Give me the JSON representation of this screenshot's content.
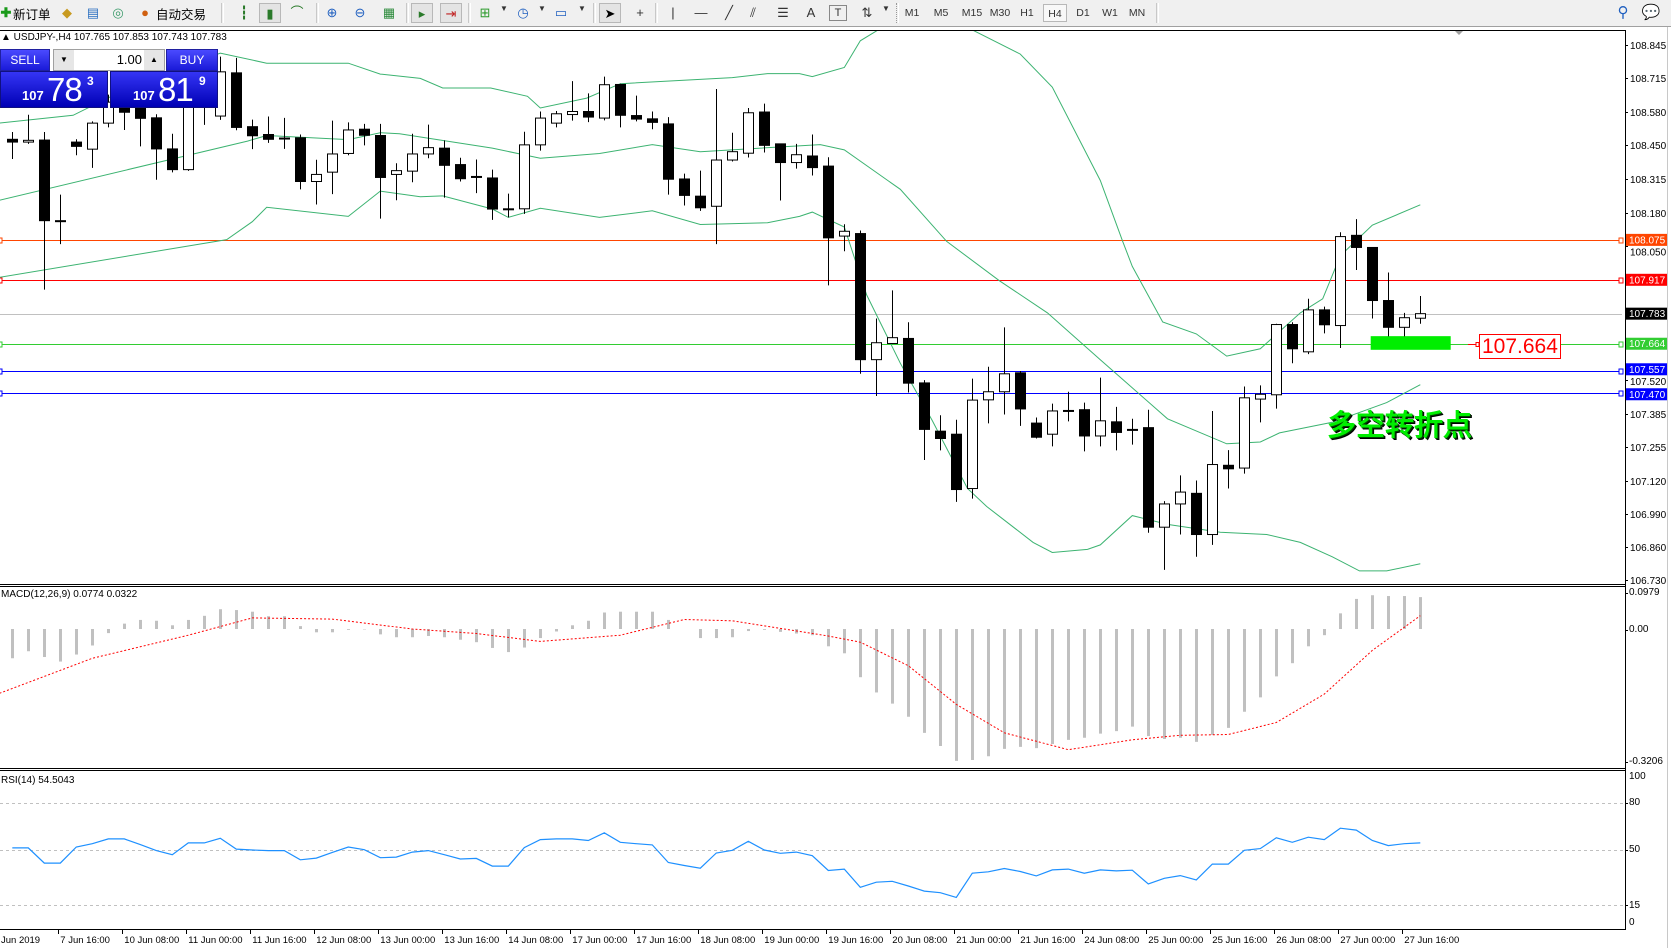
{
  "toolbar": {
    "new_order_label": "新订单",
    "auto_trading_label": "自动交易",
    "timeframes": [
      "M1",
      "M5",
      "M15",
      "M30",
      "H1",
      "H4",
      "D1",
      "W1",
      "MN"
    ],
    "active_timeframe": "H4",
    "text_tool_label": "A",
    "label_tool_label": "T"
  },
  "chart_header": "▲ USDJPY-,H4  107.765 107.853 107.743 107.783",
  "trade_panel": {
    "sell_label": "SELL",
    "buy_label": "BUY",
    "lot": "1.00",
    "sell_price": {
      "big": "107",
      "main": "78",
      "sup": "3"
    },
    "buy_price": {
      "big": "107",
      "main": "81",
      "sup": "9"
    }
  },
  "colors": {
    "bands": "#3cb371",
    "macd_hist": "#c0c0c0",
    "macd_signal": "#ff0000",
    "rsi": "#1e90ff",
    "zone": "#00ee00"
  },
  "annotation": {
    "text": "多空转折点",
    "zone_label": "107.664",
    "zone_price_top": 107.694,
    "zone_price_bottom": 107.64,
    "zone_from_bar": 85.9,
    "zone_to_bar": 90.9
  },
  "chart_data": {
    "type": "candlestick",
    "symbol": "USDJPY-",
    "timeframe": "H4",
    "ylim": [
      106.73,
      108.87
    ],
    "price_ticks": [
      "108.845",
      "108.715",
      "108.580",
      "108.450",
      "108.315",
      "108.180",
      "108.050",
      "107.520",
      "107.385",
      "107.255",
      "107.120",
      "106.990",
      "106.860",
      "106.730"
    ],
    "time_labels": [
      "Jun 2019",
      "7 Jun 16:00",
      "10 Jun 08:00",
      "11 Jun 00:00",
      "11 Jun 16:00",
      "12 Jun 08:00",
      "13 Jun 00:00",
      "13 Jun 16:00",
      "14 Jun 08:00",
      "17 Jun 00:00",
      "17 Jun 16:00",
      "18 Jun 08:00",
      "19 Jun 00:00",
      "19 Jun 16:00",
      "20 Jun 08:00",
      "21 Jun 00:00",
      "21 Jun 16:00",
      "24 Jun 08:00",
      "25 Jun 00:00",
      "25 Jun 16:00",
      "26 Jun 08:00",
      "27 Jun 00:00",
      "27 Jun 16:00"
    ],
    "ohlc_fields": [
      "open",
      "high",
      "low",
      "close"
    ],
    "candles": [
      [
        108.473,
        108.502,
        108.395,
        108.462
      ],
      [
        108.462,
        108.57,
        108.455,
        108.469
      ],
      [
        108.47,
        108.502,
        107.878,
        108.151
      ],
      [
        108.151,
        108.254,
        108.058,
        108.148
      ],
      [
        108.462,
        108.473,
        108.41,
        108.445
      ],
      [
        108.434,
        108.544,
        108.36,
        108.537
      ],
      [
        108.537,
        108.65,
        108.52,
        108.62
      ],
      [
        108.62,
        108.68,
        108.51,
        108.58
      ],
      [
        108.6,
        108.66,
        108.445,
        108.556
      ],
      [
        108.558,
        108.572,
        108.313,
        108.435
      ],
      [
        108.435,
        108.495,
        108.342,
        108.353
      ],
      [
        108.353,
        108.7,
        108.348,
        108.63
      ],
      [
        108.62,
        108.72,
        108.53,
        108.66
      ],
      [
        108.565,
        108.8,
        108.55,
        108.74
      ],
      [
        108.736,
        108.795,
        108.509,
        108.52
      ],
      [
        108.523,
        108.551,
        108.434,
        108.487
      ],
      [
        108.492,
        108.563,
        108.459,
        108.473
      ],
      [
        108.478,
        108.558,
        108.435,
        108.476
      ],
      [
        108.479,
        108.492,
        108.275,
        108.306
      ],
      [
        108.306,
        108.392,
        108.215,
        108.334
      ],
      [
        108.343,
        108.547,
        108.256,
        108.415
      ],
      [
        108.417,
        108.54,
        108.41,
        108.51
      ],
      [
        108.513,
        108.534,
        108.449,
        108.489
      ],
      [
        108.488,
        108.534,
        108.159,
        108.322
      ],
      [
        108.334,
        108.378,
        108.232,
        108.349
      ],
      [
        108.347,
        108.495,
        108.303,
        108.415
      ],
      [
        108.415,
        108.531,
        108.398,
        108.44
      ],
      [
        108.438,
        108.469,
        108.242,
        108.37
      ],
      [
        108.373,
        108.4,
        108.306,
        108.317
      ],
      [
        108.326,
        108.393,
        108.26,
        108.323
      ],
      [
        108.32,
        108.353,
        108.154,
        108.197
      ],
      [
        108.198,
        108.258,
        108.164,
        108.198
      ],
      [
        108.198,
        108.503,
        108.178,
        108.451
      ],
      [
        108.451,
        108.583,
        108.428,
        108.557
      ],
      [
        108.537,
        108.585,
        108.52,
        108.574
      ],
      [
        108.571,
        108.703,
        108.547,
        108.583
      ],
      [
        108.583,
        108.655,
        108.541,
        108.561
      ],
      [
        108.557,
        108.721,
        108.548,
        108.689
      ],
      [
        108.69,
        108.693,
        108.52,
        108.568
      ],
      [
        108.567,
        108.646,
        108.544,
        108.553
      ],
      [
        108.554,
        108.583,
        108.513,
        108.54
      ],
      [
        108.534,
        108.561,
        108.254,
        108.315
      ],
      [
        108.316,
        108.337,
        108.211,
        108.251
      ],
      [
        108.248,
        108.349,
        108.19,
        108.202
      ],
      [
        108.208,
        108.672,
        108.058,
        108.391
      ],
      [
        108.391,
        108.499,
        108.385,
        108.424
      ],
      [
        108.418,
        108.597,
        108.401,
        108.578
      ],
      [
        108.581,
        108.614,
        108.421,
        108.449
      ],
      [
        108.455,
        108.455,
        108.231,
        108.381
      ],
      [
        108.381,
        108.455,
        108.357,
        108.412
      ],
      [
        108.407,
        108.492,
        108.33,
        108.361
      ],
      [
        108.367,
        108.402,
        107.895,
        108.083
      ],
      [
        108.09,
        108.137,
        108.03,
        108.109
      ],
      [
        108.1,
        108.112,
        107.545,
        107.601
      ],
      [
        107.601,
        107.764,
        107.457,
        107.668
      ],
      [
        107.665,
        107.875,
        107.665,
        107.688
      ],
      [
        107.685,
        107.749,
        107.471,
        107.508
      ],
      [
        107.509,
        107.52,
        107.204,
        107.325
      ],
      [
        107.318,
        107.381,
        107.242,
        107.289
      ],
      [
        107.306,
        107.363,
        107.038,
        107.087
      ],
      [
        107.091,
        107.526,
        107.051,
        107.441
      ],
      [
        107.442,
        107.573,
        107.349,
        107.474
      ],
      [
        107.474,
        107.729,
        107.384,
        107.545
      ],
      [
        107.549,
        107.556,
        107.339,
        107.406
      ],
      [
        107.35,
        107.372,
        107.289,
        107.294
      ],
      [
        107.306,
        107.427,
        107.258,
        107.398
      ],
      [
        107.4,
        107.474,
        107.357,
        107.399
      ],
      [
        107.403,
        107.431,
        107.238,
        107.299
      ],
      [
        107.299,
        107.53,
        107.258,
        107.359
      ],
      [
        107.355,
        107.414,
        107.242,
        107.313
      ],
      [
        107.325,
        107.367,
        107.265,
        107.322
      ],
      [
        107.332,
        107.403,
        106.916,
        106.938
      ],
      [
        106.938,
        107.041,
        106.769,
        107.03
      ],
      [
        107.03,
        107.143,
        106.909,
        107.077
      ],
      [
        107.072,
        107.123,
        106.821,
        106.909
      ],
      [
        106.909,
        107.398,
        106.868,
        107.186
      ],
      [
        107.183,
        107.243,
        107.091,
        107.169
      ],
      [
        107.172,
        107.495,
        107.15,
        107.45
      ],
      [
        107.445,
        107.499,
        107.353,
        107.464
      ],
      [
        107.462,
        107.743,
        107.407,
        107.74
      ],
      [
        107.74,
        107.749,
        107.587,
        107.644
      ],
      [
        107.632,
        107.842,
        107.623,
        107.798
      ],
      [
        107.798,
        107.811,
        107.705,
        107.739
      ],
      [
        107.736,
        108.105,
        107.647,
        108.088
      ],
      [
        108.093,
        108.157,
        107.956,
        108.045
      ],
      [
        108.045,
        108.045,
        107.764,
        107.835
      ],
      [
        107.835,
        107.946,
        107.693,
        107.729
      ],
      [
        107.729,
        107.786,
        107.693,
        107.767
      ],
      [
        107.765,
        107.853,
        107.743,
        107.783
      ]
    ],
    "bollinger": {
      "upper": [
        [
          0.2,
          108.537
        ],
        [
          4.8,
          108.568
        ],
        [
          9,
          108.7
        ],
        [
          14,
          108.814
        ],
        [
          16.9,
          108.774
        ],
        [
          22,
          108.774
        ],
        [
          24,
          108.731
        ],
        [
          26.5,
          108.714
        ],
        [
          27.9,
          108.676
        ],
        [
          30.9,
          108.676
        ],
        [
          33.2,
          108.643
        ],
        [
          34,
          108.597
        ],
        [
          36.9,
          108.636
        ],
        [
          39,
          108.693
        ],
        [
          46,
          108.717
        ],
        [
          48.2,
          108.733
        ],
        [
          50.2,
          108.733
        ],
        [
          51,
          108.721
        ],
        [
          53,
          108.757
        ],
        [
          54,
          108.863
        ],
        [
          55.2,
          108.909
        ],
        [
          55.7,
          108.92
        ],
        [
          58.4,
          108.97
        ],
        [
          60.9,
          108.909
        ],
        [
          64,
          108.81
        ],
        [
          66,
          108.679
        ],
        [
          69,
          108.31
        ],
        [
          70.4,
          108.069
        ],
        [
          71,
          107.97
        ],
        [
          72.9,
          107.75
        ],
        [
          75,
          107.703
        ],
        [
          76.9,
          107.615
        ],
        [
          79,
          107.644
        ],
        [
          81.5,
          107.786
        ],
        [
          82.9,
          107.842
        ],
        [
          84,
          108.012
        ],
        [
          86,
          108.133
        ],
        [
          89,
          108.214
        ]
      ],
      "middle": [
        [
          0.2,
          108.232
        ],
        [
          15.7,
          108.466
        ],
        [
          16.9,
          108.488
        ],
        [
          22,
          108.472
        ],
        [
          24,
          108.499
        ],
        [
          25.2,
          108.495
        ],
        [
          31,
          108.438
        ],
        [
          34,
          108.398
        ],
        [
          37.7,
          108.417
        ],
        [
          41,
          108.452
        ],
        [
          44,
          108.424
        ],
        [
          51.5,
          108.452
        ],
        [
          53,
          108.431
        ],
        [
          56.5,
          108.275
        ],
        [
          59.4,
          108.069
        ],
        [
          62.7,
          107.913
        ],
        [
          65.7,
          107.786
        ],
        [
          69,
          107.601
        ],
        [
          73.2,
          107.367
        ],
        [
          76.9,
          107.268
        ],
        [
          79,
          107.275
        ],
        [
          80.2,
          107.311
        ],
        [
          83.5,
          107.353
        ],
        [
          86.9,
          107.431
        ],
        [
          89,
          107.502
        ]
      ],
      "lower": [
        [
          0.2,
          107.927
        ],
        [
          14.4,
          108.076
        ],
        [
          16,
          108.147
        ],
        [
          16.9,
          108.204
        ],
        [
          22,
          108.168
        ],
        [
          24,
          108.268
        ],
        [
          26.5,
          108.246
        ],
        [
          27.9,
          108.249
        ],
        [
          31,
          108.197
        ],
        [
          32,
          108.164
        ],
        [
          34,
          108.2
        ],
        [
          37.7,
          108.164
        ],
        [
          41,
          108.19
        ],
        [
          44,
          108.136
        ],
        [
          48.2,
          108.143
        ],
        [
          50.2,
          108.168
        ],
        [
          51,
          108.185
        ],
        [
          53,
          108.126
        ],
        [
          54.4,
          107.857
        ],
        [
          56.5,
          107.587
        ],
        [
          58.5,
          107.36
        ],
        [
          60.7,
          107.091
        ],
        [
          61.9,
          107.02
        ],
        [
          64.8,
          106.878
        ],
        [
          66,
          106.838
        ],
        [
          68.2,
          106.85
        ],
        [
          69,
          106.868
        ],
        [
          71,
          106.984
        ],
        [
          73.2,
          106.949
        ],
        [
          76.5,
          106.918
        ],
        [
          79.4,
          106.909
        ],
        [
          81.5,
          106.878
        ],
        [
          83.5,
          106.821
        ],
        [
          85.2,
          106.765
        ],
        [
          86.9,
          106.765
        ],
        [
          89,
          106.793
        ]
      ]
    },
    "levels": [
      {
        "price": "108.075",
        "color": "#ff4500",
        "tag_color": "#ff4500"
      },
      {
        "price": "107.917",
        "color": "#ff0000",
        "tag_color": "#ff0000"
      },
      {
        "price": "107.783",
        "color": "#c0c0c0",
        "tag_color": "#000000"
      },
      {
        "price": "107.664",
        "color": "#32cd32",
        "tag_color": "#32cd32"
      },
      {
        "price": "107.557",
        "color": "#0000ff",
        "tag_color": "#0000ff"
      },
      {
        "price": "107.470",
        "color": "#0000ff",
        "tag_color": "#0000ff"
      }
    ],
    "macd": {
      "label": "MACD(12,26,9) 0.0774 0.0322",
      "axis_labels": [
        "0.0979",
        "0.00",
        "-0.3206"
      ],
      "histogram": [
        -0.071,
        -0.054,
        -0.068,
        -0.079,
        -0.062,
        -0.04,
        -0.01,
        0.013,
        0.022,
        0.02,
        0.009,
        0.022,
        0.032,
        0.048,
        0.046,
        0.042,
        0.031,
        0.031,
        0.007,
        -0.008,
        -0.008,
        -0.002,
        -0.001,
        -0.013,
        -0.02,
        -0.02,
        -0.017,
        -0.02,
        -0.026,
        -0.032,
        -0.046,
        -0.056,
        -0.045,
        -0.022,
        -0.006,
        0.009,
        0.02,
        0.04,
        0.042,
        0.042,
        0.042,
        0.022,
        0.0,
        -0.022,
        -0.022,
        -0.02,
        -0.005,
        -0.002,
        -0.007,
        -0.011,
        -0.015,
        -0.042,
        -0.059,
        -0.117,
        -0.154,
        -0.181,
        -0.213,
        -0.252,
        -0.284,
        -0.32,
        -0.318,
        -0.309,
        -0.291,
        -0.286,
        -0.289,
        -0.279,
        -0.269,
        -0.264,
        -0.254,
        -0.248,
        -0.237,
        -0.26,
        -0.267,
        -0.264,
        -0.274,
        -0.257,
        -0.24,
        -0.201,
        -0.166,
        -0.115,
        -0.083,
        -0.042,
        -0.015,
        0.038,
        0.073,
        0.082,
        0.08,
        0.08,
        0.0774
      ],
      "signal": [
        [
          0.2,
          -0.156
        ],
        [
          6,
          -0.071
        ],
        [
          12,
          -0.015
        ],
        [
          16,
          0.027
        ],
        [
          21,
          0.024
        ],
        [
          26,
          0.0
        ],
        [
          30,
          -0.011
        ],
        [
          34,
          -0.03
        ],
        [
          39,
          -0.015
        ],
        [
          43,
          0.023
        ],
        [
          46,
          0.02
        ],
        [
          52,
          -0.017
        ],
        [
          54,
          -0.032
        ],
        [
          57,
          -0.089
        ],
        [
          60,
          -0.183
        ],
        [
          63,
          -0.252
        ],
        [
          67,
          -0.293
        ],
        [
          71,
          -0.269
        ],
        [
          74,
          -0.258
        ],
        [
          77,
          -0.256
        ],
        [
          80,
          -0.227
        ],
        [
          83,
          -0.158
        ],
        [
          86,
          -0.052
        ],
        [
          89,
          0.0322
        ]
      ]
    },
    "rsi": {
      "label": "RSI(14) 54.5043",
      "axis_labels": [
        "100",
        "80",
        "50",
        "15",
        "0"
      ],
      "levels": [
        80,
        50,
        15
      ],
      "values": [
        51.3,
        51.3,
        41.7,
        41.7,
        51.9,
        54,
        57,
        57,
        53.4,
        49.6,
        47,
        54.5,
        54.5,
        57.4,
        50.6,
        50,
        49.6,
        49.6,
        43.8,
        44.9,
        48.5,
        51.9,
        50.2,
        45.1,
        45.5,
        48.7,
        49.6,
        47,
        44.3,
        44.7,
        39.8,
        39.8,
        51.5,
        56.6,
        57,
        57,
        56,
        60.9,
        54.9,
        54,
        53.2,
        42.1,
        40.2,
        38.5,
        48.1,
        49.8,
        55.5,
        50,
        47.9,
        48.7,
        46.4,
        37,
        37.9,
        26.4,
        29.6,
        30.2,
        27.2,
        24,
        23,
        20,
        35.3,
        36.2,
        38.3,
        36.4,
        33.6,
        37.4,
        37.9,
        35.3,
        37.4,
        36.8,
        37.2,
        28.5,
        32.1,
        33.8,
        31.1,
        41.1,
        41.1,
        49.8,
        50.9,
        57.7,
        54.9,
        58.1,
        56.6,
        63.8,
        62.6,
        56,
        52.8,
        54,
        54.5
      ]
    }
  }
}
